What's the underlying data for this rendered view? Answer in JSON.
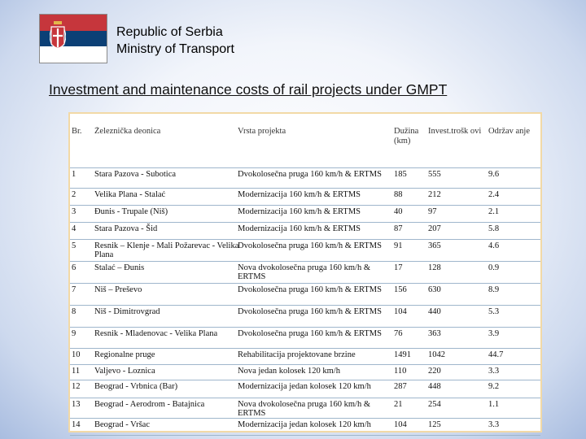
{
  "header": {
    "country": "Republic of Serbia",
    "ministry": "Ministry of Transport",
    "flag_colors": [
      "#c6363c",
      "#0c4076",
      "#ffffff"
    ]
  },
  "title": "Investment and maintenance costs of rail projects under GMPT",
  "table": {
    "headers": {
      "no": "Br.",
      "section": "Železnička deonica",
      "type": "Vrsta projekta",
      "length": "Dužina (km)",
      "invest": "Invest.trošk ovi",
      "maint": "Održav anje"
    },
    "rows": [
      {
        "no": "1",
        "section": "Stara Pazova - Subotica",
        "type": "Dvokolosečna pruga 160 km/h & ERTMS",
        "length": "185",
        "invest": "555",
        "maint": "9.6"
      },
      {
        "no": "2",
        "section": "Velika Plana - Stalać",
        "type": "Modernizacija 160 km/h & ERTMS",
        "length": "88",
        "invest": "212",
        "maint": "2.4"
      },
      {
        "no": "3",
        "section": "Đunis - Trupale (Niš)",
        "type": "Modernizacija 160 km/h & ERTMS",
        "length": "40",
        "invest": "97",
        "maint": "2.1"
      },
      {
        "no": "4",
        "section": "Stara Pazova - Šid",
        "type": "Modernizacija 160 km/h & ERTMS",
        "length": "87",
        "invest": "207",
        "maint": "5.8"
      },
      {
        "no": "5",
        "section": "Resnik – Klenje - Mali Požarevac - Velika Plana",
        "type": "Dvokolosečna pruga 160 km/h & ERTMS",
        "length": "91",
        "invest": "365",
        "maint": "4.6"
      },
      {
        "no": "6",
        "section": "Stalać – Đunis",
        "type": "Nova dvokolosečna pruga 160 km/h & ERTMS",
        "length": "17",
        "invest": "128",
        "maint": "0.9"
      },
      {
        "no": "7",
        "section": "Niš – Preševo",
        "type": "Dvokolosečna pruga 160 km/h & ERTMS",
        "length": "156",
        "invest": "630",
        "maint": "8.9"
      },
      {
        "no": "8",
        "section": "Niš - Dimitrovgrad",
        "type": "Dvokolosečna pruga 160 km/h & ERTMS",
        "length": "104",
        "invest": "440",
        "maint": "5.3"
      },
      {
        "no": "9",
        "section": "Resnik - Mladenovac - Velika Plana",
        "type": "Dvokolosečna pruga 160 km/h & ERTMS",
        "length": "76",
        "invest": "363",
        "maint": "3.9"
      },
      {
        "no": "10",
        "section": "Regionalne pruge",
        "type": "Rehabilitacija projektovane brzine",
        "length": "1491",
        "invest": "1042",
        "maint": "44.7"
      },
      {
        "no": "11",
        "section": "Valjevo - Loznica",
        "type": "Nova jedan kolosek 120 km/h",
        "length": "110",
        "invest": "220",
        "maint": "3.3"
      },
      {
        "no": "12",
        "section": "Beograd - Vrbnica (Bar)",
        "type": "Modernizacija jedan kolosek 120 km/h",
        "length": "287",
        "invest": "448",
        "maint": "9.2"
      },
      {
        "no": "13",
        "section": "Beograd - Aerodrom - Batajnica",
        "type": "Nova dvokolosečna pruga 160 km/h & ERTMS",
        "length": "21",
        "invest": "254",
        "maint": "1.1"
      },
      {
        "no": "14",
        "section": "Beograd - Vršac",
        "type": "Modernizacija jedan kolosek 120 km/h",
        "length": "104",
        "invest": "125",
        "maint": "3.3"
      }
    ]
  }
}
